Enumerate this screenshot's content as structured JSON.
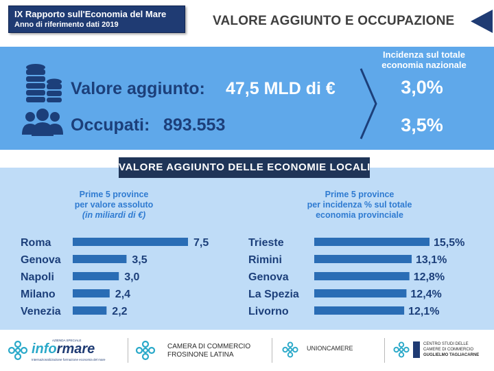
{
  "header": {
    "report_title": "IX Rapporto sull'Economia del Mare",
    "report_subtitle": "Anno di riferimento dati 2019",
    "slide_title": "VALORE AGGIUNTO E OCCUPAZIONE"
  },
  "kpis": {
    "value_added_label": "Valore aggiunto:",
    "value_added_value": "47,5 MLD di €",
    "employed_label": "Occupati:",
    "employed_value": "893.553",
    "incidence_title": "Incidenza sul totale economia nazionale",
    "value_added_share": "3,0%",
    "employed_share": "3,5%"
  },
  "section_title": "VALORE AGGIUNTO DELLE ECONOMIE LOCALI",
  "chart_data": [
    {
      "type": "bar",
      "orientation": "horizontal",
      "title": "Prime 5 province per valore assoluto (in miliardi di €)",
      "title_lines": [
        "Prime 5 province",
        "per valore assoluto",
        "(in miliardi di €)"
      ],
      "categories": [
        "Roma",
        "Genova",
        "Napoli",
        "Milano",
        "Venezia"
      ],
      "values": [
        7.5,
        3.5,
        3.0,
        2.4,
        2.2
      ],
      "value_labels": [
        "7,5",
        "3,5",
        "3,0",
        "2,4",
        "2,2"
      ],
      "bar_color": "#2a6db5",
      "grid": false
    },
    {
      "type": "bar",
      "orientation": "horizontal",
      "title": "Prime 5 province per incidenza % sul totale economia provinciale",
      "title_lines": [
        "Prime 5 province",
        "per incidenza % sul totale",
        "economia provinciale"
      ],
      "categories": [
        "Trieste",
        "Rimini",
        "Genova",
        "La Spezia",
        "Livorno"
      ],
      "values": [
        15.5,
        13.1,
        12.8,
        12.4,
        12.1
      ],
      "value_labels": [
        "15,5%",
        "13,1%",
        "12,8%",
        "12,4%",
        "12,1%"
      ],
      "bar_color": "#2a6db5",
      "grid": false
    }
  ],
  "footer": {
    "logo1_top": "AZIENDA SPECIALE",
    "logo1_main_a": "info",
    "logo1_main_b": "rmare",
    "logo1_tag": "Internazionalizzazione formazione economia del mare",
    "logo2_line1": "CAMERA DI COMMERCIO",
    "logo2_line2": "FROSINONE LATINA",
    "logo3": "UNIONCAMERE",
    "logo4_line1": "CENTRO STUDI DELLE",
    "logo4_line2": "CAMERE DI COMMERCIO",
    "logo4_line3": "GUGLIELMO TAGLIACARNE"
  },
  "colors": {
    "navy": "#1f3b73",
    "band_top": "#5fa8ea",
    "band_bottom": "#bfdcf7",
    "label_dark": "#1c3f7a",
    "accent_blue": "#2f7bd1",
    "bar": "#2a6db5"
  }
}
